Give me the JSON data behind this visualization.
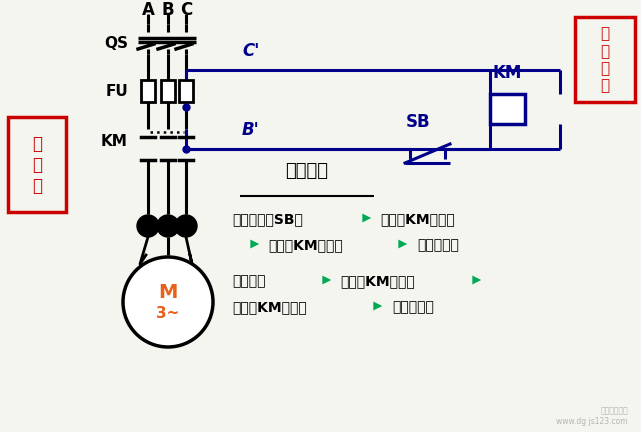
{
  "bg_color": "#f5f5f0",
  "circuit_color": "#00008B",
  "main_color": "#000000",
  "red_color": "#CC0000",
  "orange_color": "#E8601A",
  "arrow_color": "#00AA55",
  "label_A": "A",
  "label_B": "B",
  "label_C": "C",
  "label_QS": "QS",
  "label_FU": "FU",
  "label_KM_main": "KM",
  "label_SB": "SB",
  "label_Cprime": "C'",
  "label_Bprime": "B'",
  "label_KM_coil": "KM",
  "motor_label1": "M",
  "motor_label2": "3~",
  "main_box_label": "主\n电\n路",
  "ctrl_box_label": "控\n制\n电\n路",
  "action_title": "动作过程",
  "t1a": "按下按鈕（SB）",
  "t1b": "线圈（KM）通电",
  "t2a": "触头（KM）闭合",
  "t2b": "电机转动；",
  "t3a": "按鈕松开",
  "t3b": "线圈（KM）断电",
  "t4a": "触头（KM）打开",
  "t4b": "电机停转。"
}
